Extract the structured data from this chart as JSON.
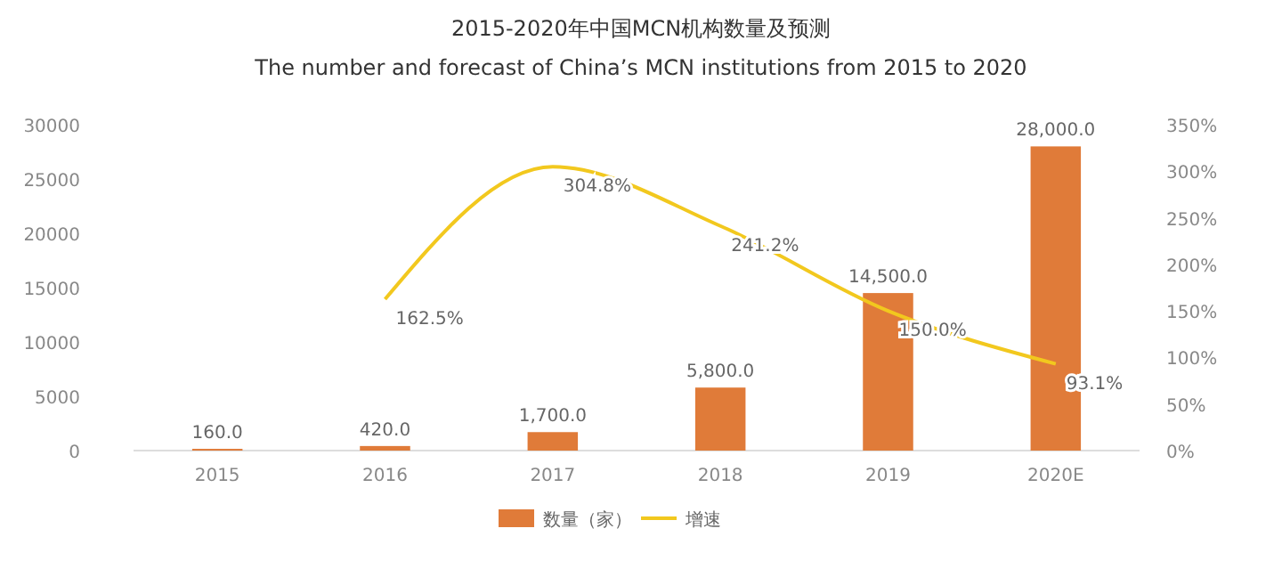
{
  "chart_data": {
    "type": "bar",
    "title": "2015-2020年中国MCN机构数量及预测",
    "subtitle": "The number and forecast of China’s MCN institutions from 2015 to 2020",
    "categories": [
      "2015",
      "2016",
      "2017",
      "2018",
      "2019",
      "2020E"
    ],
    "series": [
      {
        "name": "数量（家）",
        "color": "#e07b39",
        "values": [
          160,
          420,
          1700,
          5800,
          14500,
          28000
        ],
        "value_labels": [
          "160.0",
          "420.0",
          "1,700.0",
          "5,800.0",
          "14,500.0",
          "28,000.0"
        ]
      },
      {
        "name": "增速",
        "type": "line",
        "axis": "y2",
        "color": "#f2c81e",
        "values": [
          null,
          162.5,
          304.8,
          241.2,
          150.0,
          93.1
        ],
        "value_labels": [
          null,
          "162.5%",
          "304.8%",
          "241.2%",
          "150.0%",
          "93.1%"
        ]
      }
    ],
    "ylim": [
      0,
      30000
    ],
    "yticks": [
      0,
      5000,
      10000,
      15000,
      20000,
      25000,
      30000
    ],
    "y2lim": [
      0,
      350
    ],
    "y2ticks": [
      {
        "value": 0,
        "label": "0%"
      },
      {
        "value": 50,
        "label": "50%"
      },
      {
        "value": 100,
        "label": "100%"
      },
      {
        "value": 150,
        "label": "150%"
      },
      {
        "value": 200,
        "label": "200%"
      },
      {
        "value": 250,
        "label": "250%"
      },
      {
        "value": 300,
        "label": "300%"
      },
      {
        "value": 350,
        "label": "350%"
      }
    ],
    "grid": false,
    "legend": "bottom",
    "marker": "none"
  }
}
